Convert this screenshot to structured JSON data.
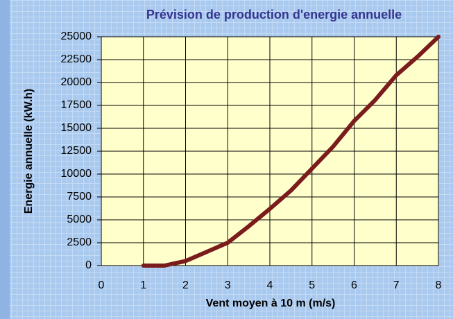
{
  "chart_data": {
    "type": "line",
    "title": "Prévision de production d'energie annuelle",
    "x_label": "Vent moyen à 10 m  (m/s)",
    "y_label": "Energie annuelle (kW.h)",
    "x": [
      1,
      1.5,
      2,
      2.5,
      3,
      3.5,
      4,
      4.5,
      5,
      5.5,
      6,
      6.5,
      7,
      7.5,
      8
    ],
    "values": [
      0,
      0,
      500,
      1500,
      2500,
      4300,
      6200,
      8200,
      10600,
      13000,
      15800,
      18100,
      20800,
      22800,
      25000
    ],
    "color": "#7a1c1c",
    "xlim": [
      0,
      8
    ],
    "xticks": [
      0,
      1,
      2,
      3,
      4,
      5,
      6,
      7,
      8
    ],
    "ylim": [
      0,
      25000
    ],
    "yticks": [
      0,
      2500,
      5000,
      7500,
      10000,
      12500,
      15000,
      17500,
      20000,
      22500,
      25000
    ],
    "grid": true
  }
}
